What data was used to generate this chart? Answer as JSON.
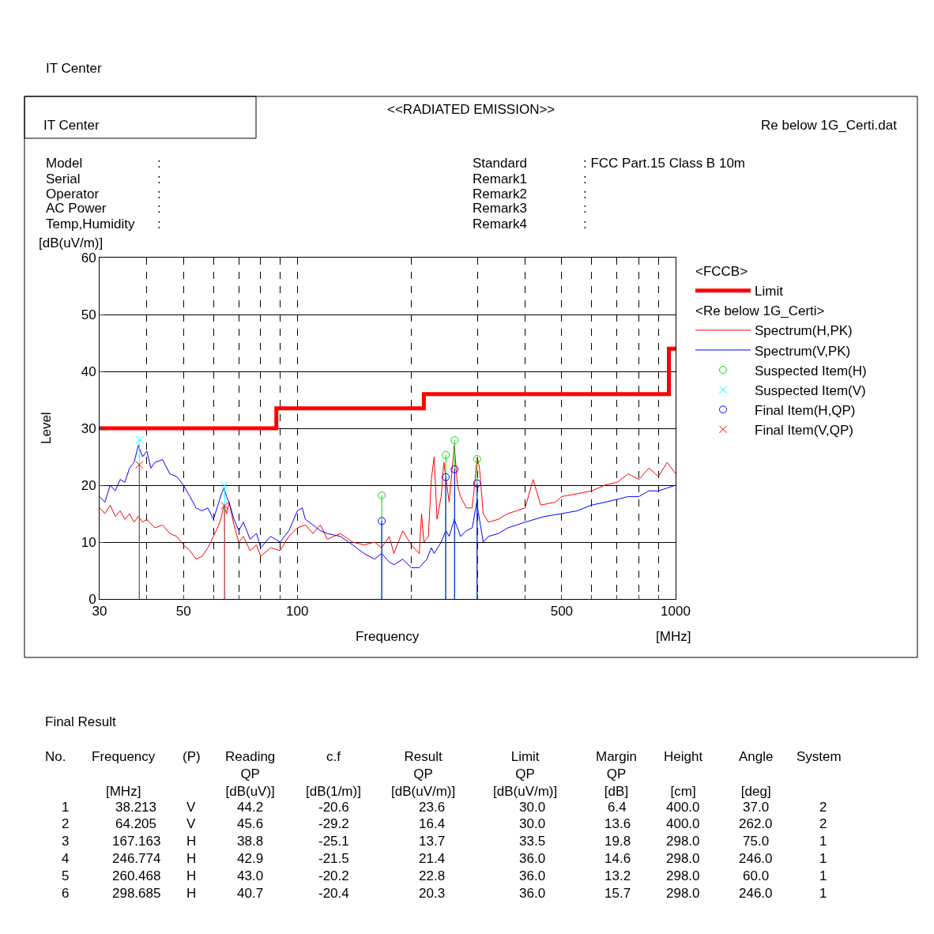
{
  "chart_data": {
    "type": "line",
    "title": "<<RADIATED EMISSION>>",
    "xlabel": "Frequency",
    "ylabel": "Level",
    "legend_title": "<FCCB>",
    "log": "x",
    "grid": true,
    "legend": "right",
    "xlim": [
      30,
      1000
    ],
    "ylim": [
      0,
      60
    ],
    "xticks": [
      30,
      {
        "value": 40,
        "label": null
      },
      50,
      {
        "value": 60,
        "label": null
      },
      {
        "value": 70,
        "label": null
      },
      {
        "value": 80,
        "label": null
      },
      {
        "value": 90,
        "label": null
      },
      100,
      {
        "value": 200,
        "label": null
      },
      {
        "value": 300,
        "label": null
      },
      {
        "value": 400,
        "label": null
      },
      500,
      {
        "value": 600,
        "label": null
      },
      {
        "value": 700,
        "label": null
      },
      {
        "value": 800,
        "label": null
      },
      {
        "value": 900,
        "label": null
      },
      1000
    ],
    "yticks": [
      0,
      10,
      20,
      30,
      40,
      50,
      60
    ],
    "series": [
      {
        "name": "Limit",
        "type": "step",
        "color": "#ff0000",
        "x": [
          30,
          88,
          216,
          960,
          1000
        ],
        "values": [
          30,
          33.5,
          36,
          44,
          44
        ]
      },
      {
        "name": "Spectrum(H,PK)",
        "color": "#ff0000",
        "x": [
          30,
          31,
          32,
          33,
          34,
          35,
          36,
          37,
          38,
          39,
          40,
          42,
          44,
          46,
          48,
          50,
          52,
          54,
          56,
          58,
          60,
          62,
          63,
          64,
          65,
          66,
          68,
          70,
          72,
          75,
          78,
          80,
          85,
          90,
          95,
          100,
          105,
          110,
          115,
          120,
          130,
          140,
          150,
          160,
          167,
          175,
          180,
          190,
          200,
          210,
          213,
          216,
          222,
          226,
          230,
          234,
          240,
          244,
          252,
          260,
          265,
          270,
          280,
          290,
          296,
          299,
          303,
          310,
          320,
          340,
          360,
          380,
          400,
          420,
          440,
          480,
          500,
          550,
          600,
          650,
          700,
          750,
          800,
          850,
          900,
          950,
          1000
        ],
        "values": [
          16,
          15,
          16.5,
          14.5,
          15.5,
          14,
          15,
          13.5,
          14.5,
          13.5,
          14,
          12.5,
          13,
          11.5,
          11,
          9.5,
          8.5,
          7,
          7.5,
          9,
          11,
          13,
          14.5,
          16.5,
          15,
          17,
          13,
          10,
          11,
          8.5,
          9.5,
          7.5,
          9,
          8.5,
          11,
          12.5,
          13,
          11.5,
          13,
          10.5,
          11.5,
          10,
          9.5,
          10,
          9,
          11,
          8,
          12,
          9.5,
          8,
          15,
          10,
          11,
          21,
          25,
          14,
          18,
          24,
          17,
          27,
          20,
          18,
          16,
          16,
          22,
          25,
          23,
          15,
          13.5,
          14,
          15,
          15.5,
          16,
          21,
          16.5,
          17,
          18,
          18.5,
          19,
          20,
          20.5,
          22,
          21,
          23,
          21.5,
          24,
          22
        ]
      },
      {
        "name": "Spectrum(V,PK)",
        "color": "#0000ff",
        "x": [
          30,
          31,
          32,
          33,
          34,
          35,
          36,
          37,
          38,
          39,
          40,
          41,
          42,
          44,
          46,
          48,
          50,
          52,
          54,
          56,
          58,
          60,
          62,
          63,
          64,
          65,
          66,
          68,
          70,
          72,
          75,
          78,
          80,
          85,
          90,
          95,
          100,
          103,
          105,
          110,
          115,
          120,
          130,
          140,
          150,
          160,
          167,
          175,
          180,
          190,
          200,
          210,
          220,
          226,
          230,
          240,
          247,
          252,
          260,
          270,
          280,
          290,
          298,
          303,
          310,
          320,
          340,
          360,
          380,
          400,
          450,
          500,
          550,
          600,
          650,
          700,
          750,
          800,
          850,
          900,
          950,
          1000
        ],
        "values": [
          18,
          17,
          20,
          19,
          21,
          20.5,
          23,
          24,
          27,
          25,
          26,
          23,
          24,
          24.5,
          22,
          21.5,
          20,
          18,
          16,
          15.5,
          16,
          14,
          17,
          18.5,
          19.5,
          18,
          17,
          14,
          12,
          13.5,
          10.5,
          11.5,
          9,
          11,
          10,
          12,
          15.5,
          16,
          14,
          13,
          12,
          11.5,
          11,
          9.5,
          8,
          7,
          8,
          6.5,
          6,
          7,
          5.5,
          5.5,
          7,
          9,
          8,
          10,
          12,
          11,
          14,
          11,
          12,
          12.5,
          17,
          14,
          10,
          11,
          11.5,
          12.5,
          13,
          13.5,
          14.5,
          15,
          15.5,
          16.5,
          17,
          17.5,
          18,
          18,
          19,
          19,
          19.5,
          20
        ]
      },
      {
        "name": "Suspected Item(H)",
        "type": "lollipop",
        "color": "#00e000",
        "marker": "circle",
        "x": [
          167.163,
          246.774,
          260.468,
          298.685
        ],
        "values": [
          18.2,
          25.3,
          27.9,
          24.6
        ]
      },
      {
        "name": "Suspected Item(V)",
        "type": "lollipop",
        "color": "#00ffff",
        "marker": "cross",
        "x": [
          38.213,
          64.205
        ],
        "values": [
          28,
          20
        ]
      },
      {
        "name": "Final Item(H,QP)",
        "type": "lollipop",
        "color": "#0000ff",
        "marker": "circle",
        "x": [
          167.163,
          246.774,
          260.468,
          298.685
        ],
        "values": [
          13.7,
          21.4,
          22.8,
          20.3
        ]
      },
      {
        "name": "Final Item(V,QP)",
        "type": "lollipop",
        "color": "#ff0000",
        "marker": "cross",
        "x": [
          38.213,
          64.205
        ],
        "values": [
          23.6,
          16.4
        ]
      }
    ],
    "annotations": [
      "IT Center",
      "IT Center",
      "Re below 1G_Certi.dat",
      "<Re below 1G_Certi>",
      "Model",
      "Serial",
      "Operator",
      "AC Power",
      "Temp,Humidity",
      ":",
      ":",
      ":",
      ":",
      ":",
      "Standard",
      "Remark1",
      "Remark2",
      "Remark3",
      "Remark4",
      ": FCC Part.15 Class B 10m",
      ":",
      ":",
      ":",
      ":",
      "[dB(uV/m)]",
      "[MHz]",
      "Final Result",
      "No.",
      "Frequency\n\n[MHz]",
      "(P)",
      "Reading\nQP\n[dB(uV)]",
      "c.f\n\n[dB(1/m)]",
      "Result\nQP\n[dB(uV/m)]",
      "Limit\nQP\n[dB(uV/m)]",
      "Margin\nQP\n[dB]",
      "Height\n\n[cm]",
      "Angle\n\n[deg]",
      "System",
      "1",
      "38.213",
      "V",
      "44.2",
      "-20.6",
      "23.6",
      "30.0",
      "6.4",
      "400.0",
      "37.0",
      "2",
      "2",
      "64.205",
      "V",
      "45.6",
      "-29.2",
      "16.4",
      "30.0",
      "13.6",
      "400.0",
      "262.0",
      "2",
      "3",
      "167.163",
      "H",
      "38.8",
      "-25.1",
      "13.7",
      "33.5",
      "19.8",
      "298.0",
      "75.0",
      "1",
      "4",
      "246.774",
      "H",
      "42.9",
      "-21.5",
      "21.4",
      "36.0",
      "14.6",
      "298.0",
      "246.0",
      "1",
      "5",
      "260.468",
      "H",
      "43.0",
      "-20.2",
      "22.8",
      "36.0",
      "13.2",
      "298.0",
      "60.0",
      "1",
      "6",
      "298.685",
      "H",
      "40.7",
      "-20.4",
      "20.3",
      "36.0",
      "15.7",
      "298.0",
      "246.0",
      "1"
    ]
  }
}
